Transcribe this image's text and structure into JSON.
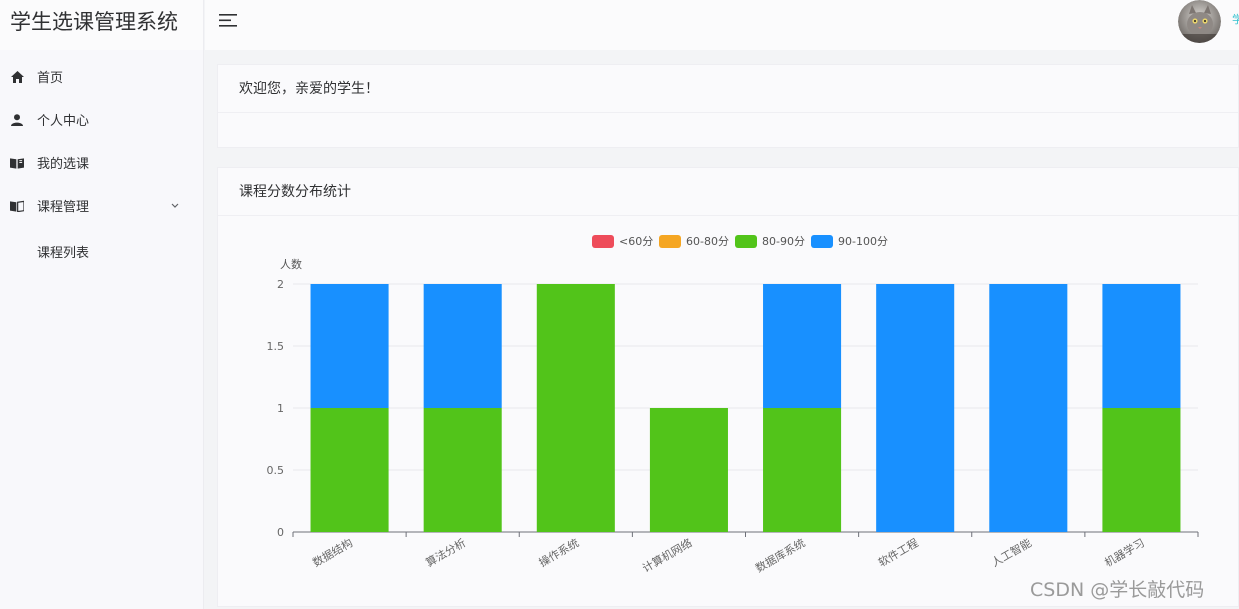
{
  "app": {
    "title": "学生选课管理系统"
  },
  "sidebar": {
    "items": [
      {
        "label": "首页",
        "icon": "home-icon"
      },
      {
        "label": "个人中心",
        "icon": "user-icon"
      },
      {
        "label": "我的选课",
        "icon": "book-open-icon"
      },
      {
        "label": "课程管理",
        "icon": "book-icon",
        "expanded": true
      }
    ],
    "submenu": [
      {
        "label": "课程列表"
      }
    ]
  },
  "header": {
    "user_label": "学"
  },
  "welcome": {
    "text": "欢迎您，亲爱的学生！"
  },
  "chart_card": {
    "title": "课程分数分布统计"
  },
  "chart_data": {
    "type": "bar",
    "stacked": true,
    "ylabel": "人数",
    "ylim": [
      0,
      2
    ],
    "yticks": [
      "0",
      "0.5",
      "1",
      "1.5",
      "2"
    ],
    "grid": true,
    "legend_position": "top-center",
    "categories": [
      "数据结构",
      "算法分析",
      "操作系统",
      "计算机网络",
      "数据库系统",
      "软件工程",
      "人工智能",
      "机器学习"
    ],
    "series": [
      {
        "name": "<60分",
        "color": "#ee4c5a",
        "values": [
          0,
          0,
          0,
          0,
          0,
          0,
          0,
          0
        ]
      },
      {
        "name": "60-80分",
        "color": "#f5a623",
        "values": [
          0,
          0,
          0,
          0,
          0,
          0,
          0,
          0
        ]
      },
      {
        "name": "80-90分",
        "color": "#52c41a",
        "values": [
          1,
          1,
          2,
          1,
          1,
          0,
          0,
          1
        ]
      },
      {
        "name": "90-100分",
        "color": "#1890ff",
        "values": [
          1,
          1,
          0,
          0,
          1,
          2,
          2,
          1
        ]
      }
    ]
  },
  "watermark": {
    "text": "CSDN @学长敲代码"
  }
}
